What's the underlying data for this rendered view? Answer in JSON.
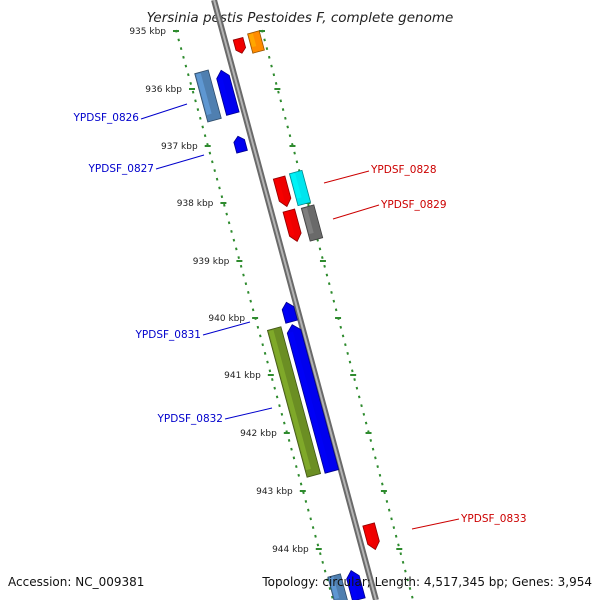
{
  "title": "Yersinia pestis Pestoides F, complete genome",
  "footer": {
    "accession": "Accession: NC_009381",
    "summary": "Topology: circular; Length: 4,517,345 bp; Genes: 3,954"
  },
  "ticks": [
    "935 kbp",
    "936 kbp",
    "937 kbp",
    "938 kbp",
    "939 kbp",
    "940 kbp",
    "941 kbp",
    "942 kbp",
    "943 kbp",
    "944 kbp"
  ],
  "colors": {
    "blue": "#0000ee",
    "steel": "#4f7fb0",
    "red": "#ee0000",
    "orange": "#ff8c00",
    "cyan": "#00e5ee",
    "gray": "#6a6a6a",
    "olive": "#6b8e23",
    "backbone": "#8a8a8a",
    "dots": "#2e8b2e",
    "label_blue": "#0000cc",
    "label_red": "#cc0000"
  },
  "genes": [
    {
      "label": "YPDSF_0826",
      "side": "left",
      "color": "blue"
    },
    {
      "label": "YPDSF_0827",
      "side": "left",
      "color": "blue"
    },
    {
      "label": "YPDSF_0828",
      "side": "right",
      "color": "red"
    },
    {
      "label": "YPDSF_0829",
      "side": "right",
      "color": "red"
    },
    {
      "label": "YPDSF_0831",
      "side": "left",
      "color": "blue"
    },
    {
      "label": "YPDSF_0832",
      "side": "left",
      "color": "blue"
    },
    {
      "label": "YPDSF_0833",
      "side": "right",
      "color": "red"
    }
  ]
}
